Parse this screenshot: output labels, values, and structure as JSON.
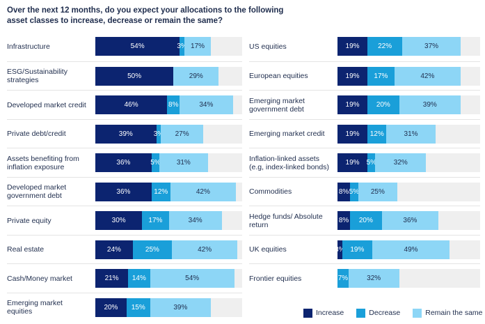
{
  "title": "Over the next 12 months, do you expect your allocations to the following asset classes to increase, decrease or remain the same?",
  "colors": {
    "increase": "#0c2470",
    "decrease": "#1a9fd9",
    "remain": "#8dd6f6",
    "track": "#efefef"
  },
  "chart_data": {
    "type": "bar",
    "orientation": "horizontal-stacked",
    "title": "Over the next 12 months, do you expect your allocations to the following asset classes to increase, decrease or remain the same?",
    "series_names": [
      "Increase",
      "Decrease",
      "Remain the same"
    ],
    "unit": "%",
    "xlim": [
      0,
      100
    ],
    "legend_position": "bottom-right",
    "panels": [
      {
        "rows": [
          {
            "label": "Infrastructure",
            "increase": 54,
            "decrease": 3,
            "remain": 17
          },
          {
            "label": "ESG/Sustainability strategies",
            "increase": 50,
            "decrease": 0,
            "remain": 29
          },
          {
            "label": "Developed market credit",
            "increase": 46,
            "decrease": 8,
            "remain": 34
          },
          {
            "label": "Private debt/credit",
            "increase": 39,
            "decrease": 3,
            "remain": 27
          },
          {
            "label": "Assets benefiting from inflation exposure",
            "increase": 36,
            "decrease": 5,
            "remain": 31
          },
          {
            "label": "Developed market government debt",
            "increase": 36,
            "decrease": 12,
            "remain": 42
          },
          {
            "label": "Private equity",
            "increase": 30,
            "decrease": 17,
            "remain": 34
          },
          {
            "label": "Real estate",
            "increase": 24,
            "decrease": 25,
            "remain": 42
          },
          {
            "label": "Cash/Money market",
            "increase": 21,
            "decrease": 14,
            "remain": 54
          },
          {
            "label": "Emerging market equities",
            "increase": 20,
            "decrease": 15,
            "remain": 39
          }
        ]
      },
      {
        "rows": [
          {
            "label": "US equities",
            "increase": 19,
            "decrease": 22,
            "remain": 37
          },
          {
            "label": "European equities",
            "increase": 19,
            "decrease": 17,
            "remain": 42
          },
          {
            "label": "Emerging market government debt",
            "increase": 19,
            "decrease": 20,
            "remain": 39
          },
          {
            "label": "Emerging market credit",
            "increase": 19,
            "decrease": 12,
            "remain": 31
          },
          {
            "label": "Inflation-linked assets (e.g, index-linked bonds)",
            "increase": 19,
            "decrease": 5,
            "remain": 32
          },
          {
            "label": "Commodities",
            "increase": 8,
            "decrease": 5,
            "remain": 25
          },
          {
            "label": "Hedge funds/ Absolute return",
            "increase": 8,
            "decrease": 20,
            "remain": 36
          },
          {
            "label": "UK equities",
            "increase": 3,
            "decrease": 19,
            "remain": 49
          },
          {
            "label": "Frontier equities",
            "increase": 0,
            "decrease": 7,
            "remain": 32
          }
        ]
      }
    ]
  },
  "legend": {
    "increase_label": "Increase",
    "decrease_label": "Decrease",
    "remain_label": "Remain the same"
  }
}
